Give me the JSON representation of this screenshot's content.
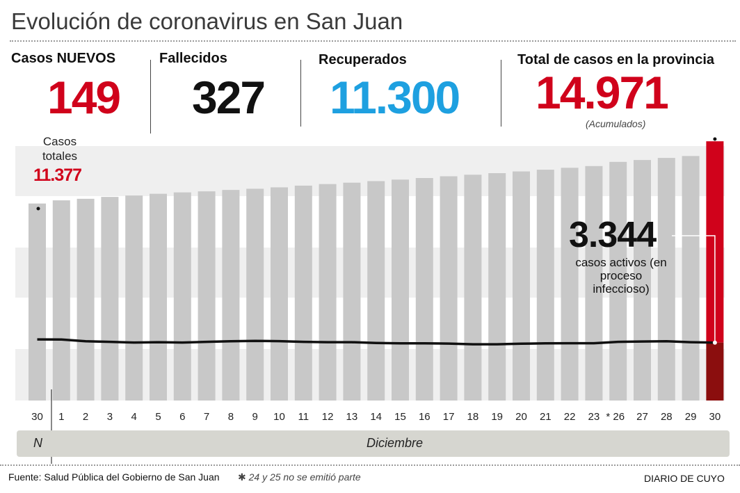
{
  "title": "Evolución de coronavirus en San Juan",
  "stats": [
    {
      "label": "Casos NUEVOS",
      "value": "149",
      "color": "#d0021b"
    },
    {
      "label": "Fallecidos",
      "value": "327",
      "color": "#111111"
    },
    {
      "label": "Recuperados",
      "value": "11.300",
      "color": "#1ea0e0"
    },
    {
      "label": "Total de casos en la provincia",
      "value": "14.971",
      "color": "#d0021b"
    }
  ],
  "total_note": "(Acumulados)",
  "annotations": {
    "start_label": "Casos totales",
    "start_value": "11.377",
    "active_value": "3.344",
    "active_label": "casos activos (en proceso infeccioso)"
  },
  "months": {
    "november": "N",
    "december": "Diciembre"
  },
  "footer": {
    "source": "Fuente: Salud Pública del Gobierno de San Juan",
    "note": "✱ 24 y 25 no se emitió parte",
    "brand": "DIARIO DE CUYO"
  },
  "colors": {
    "bar": "#c8c8c8",
    "highlight_total": "#d0021b",
    "highlight_active": "#8b0e0e",
    "line": "#111111",
    "band": "#efefef"
  },
  "chart_data": {
    "type": "bar",
    "categories": [
      "30",
      "1",
      "2",
      "3",
      "4",
      "5",
      "6",
      "7",
      "8",
      "9",
      "10",
      "11",
      "12",
      "13",
      "14",
      "15",
      "16",
      "17",
      "18",
      "19",
      "20",
      "21",
      "22",
      "23",
      "26",
      "27",
      "28",
      "29",
      "30"
    ],
    "tick_labels": [
      "30",
      "1",
      "2",
      "3",
      "4",
      "5",
      "6",
      "7",
      "8",
      "9",
      "10",
      "11",
      "12",
      "13",
      "14",
      "15",
      "16",
      "17",
      "18",
      "19",
      "20",
      "21",
      "22",
      "23",
      "* 26",
      "27",
      "28",
      "29",
      "30"
    ],
    "series": [
      {
        "name": "Casos totales",
        "values": [
          11377,
          11560,
          11650,
          11760,
          11840,
          11940,
          12020,
          12080,
          12160,
          12230,
          12310,
          12410,
          12500,
          12580,
          12670,
          12760,
          12850,
          12950,
          13040,
          13130,
          13230,
          13330,
          13440,
          13540,
          13780,
          13890,
          14010,
          14120,
          14971
        ]
      },
      {
        "name": "casos activos",
        "values": [
          3530,
          3520,
          3420,
          3390,
          3350,
          3370,
          3350,
          3390,
          3420,
          3440,
          3430,
          3390,
          3370,
          3370,
          3320,
          3300,
          3300,
          3290,
          3250,
          3250,
          3280,
          3300,
          3310,
          3310,
          3390,
          3410,
          3420,
          3370,
          3344
        ]
      }
    ],
    "ylim": [
      0,
      15500
    ],
    "highlight_index": 28
  }
}
